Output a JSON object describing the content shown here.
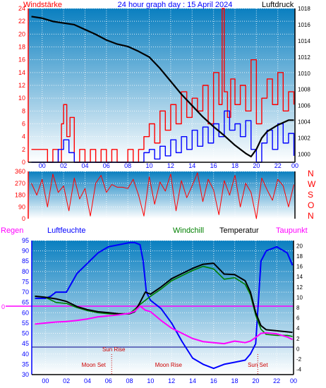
{
  "header": {
    "left_label": "Windstärke",
    "title": "24 hour graph day : 15 April 2024",
    "right_label": "Luftdruck"
  },
  "colors": {
    "wind_gust": "#ff0000",
    "wind_avg": "#0000ff",
    "pressure": "#000000",
    "direction": "#ff0000",
    "humidity": "#0000ff",
    "temperature": "#000000",
    "windchill": "#008000",
    "dewpoint": "#ff00ff",
    "rain": "#ff00ff",
    "sky_top": "#0a7fc0",
    "sky_bottom": "#ffffff"
  },
  "chart_data": [
    {
      "type": "line",
      "name": "wind-and-pressure",
      "x_ticks": [
        "00",
        "02",
        "04",
        "06",
        "08",
        "10",
        "12",
        "14",
        "16",
        "18",
        "20",
        "22",
        "00"
      ],
      "left_axis": {
        "label": "Windstärke",
        "range": [
          0,
          24
        ],
        "ticks": [
          0,
          2,
          4,
          6,
          8,
          10,
          12,
          14,
          16,
          18,
          20,
          22,
          24
        ]
      },
      "right_axis": {
        "label": "Luftdruck",
        "range": [
          999,
          1018
        ],
        "ticks": [
          1000,
          1002,
          1004,
          1006,
          1008,
          1010,
          1012,
          1014,
          1016,
          1018
        ]
      },
      "series": [
        {
          "name": "pressure",
          "axis": "right",
          "x": [
            -1,
            0,
            1,
            2,
            3,
            4,
            5,
            6,
            7,
            8,
            9,
            10,
            11,
            12,
            13,
            14,
            15,
            16,
            17,
            18,
            19,
            19.5,
            20,
            20.5,
            21,
            22,
            23,
            23.5
          ],
          "values": [
            1017,
            1016.8,
            1016.4,
            1016.2,
            1016,
            1015.4,
            1014.8,
            1014.1,
            1013.6,
            1013.3,
            1012.7,
            1012,
            1010.6,
            1009,
            1007.4,
            1006,
            1004.6,
            1003.4,
            1002.3,
            1001.1,
            1000.1,
            999.7,
            1000.6,
            1002,
            1002.8,
            1003.6,
            1004.2,
            1004.2
          ]
        },
        {
          "name": "wind gust",
          "axis": "left",
          "x": [
            -1,
            0,
            0.5,
            1,
            1.5,
            1.8,
            2,
            2.3,
            2.6,
            3,
            3.5,
            4,
            4.5,
            5,
            5.5,
            6,
            6.5,
            7,
            7.5,
            8,
            8.5,
            9,
            9.5,
            10,
            10.5,
            11,
            11.5,
            12,
            12.5,
            13,
            13.5,
            14,
            14.5,
            15,
            15.5,
            16,
            16.5,
            16.8,
            17,
            17.3,
            17.6,
            18,
            18.5,
            19,
            19.5,
            20,
            20.5,
            21,
            21.5,
            22,
            22.5,
            23,
            23.5
          ],
          "values": [
            2,
            2,
            0,
            2,
            0,
            6,
            9,
            4,
            7,
            0,
            2,
            0,
            2,
            0,
            2,
            0,
            2,
            0,
            0,
            2,
            0,
            2,
            4,
            6,
            3,
            8,
            5,
            9,
            6,
            11,
            7,
            10,
            8,
            12,
            6,
            14,
            9,
            24,
            11,
            7,
            13,
            9,
            12,
            8,
            16,
            6,
            10,
            13,
            9,
            14,
            8,
            11,
            9
          ]
        },
        {
          "name": "wind average",
          "axis": "left",
          "x": [
            -1,
            0,
            1,
            1.5,
            2,
            2.5,
            3,
            4,
            6,
            8,
            9,
            9.5,
            10,
            10.5,
            11,
            11.5,
            12,
            12.5,
            13,
            13.5,
            14,
            14.5,
            15,
            15.5,
            16,
            16.5,
            17,
            17.5,
            18,
            18.5,
            19,
            19.5,
            20,
            20.5,
            21,
            21.5,
            22,
            22.5,
            23,
            23.5
          ],
          "values": [
            0,
            0,
            0,
            2,
            3.5,
            1.5,
            0,
            0,
            0,
            0,
            0,
            1.5,
            2,
            0.5,
            2.5,
            1,
            3.5,
            1.5,
            4,
            2,
            5,
            2.5,
            5.5,
            3,
            6,
            4,
            8,
            5,
            6,
            4,
            6.5,
            2,
            0,
            3,
            5,
            2,
            6,
            3,
            4.5,
            1
          ]
        }
      ]
    },
    {
      "type": "line",
      "name": "wind-direction",
      "left_axis": {
        "range": [
          0,
          360
        ],
        "ticks": [
          0,
          90,
          180,
          270,
          360
        ]
      },
      "right_labels": [
        "N",
        "W",
        "S",
        "O",
        "N"
      ],
      "series": [
        {
          "name": "direction",
          "x": [
            -1,
            -0.5,
            0,
            0.5,
            1,
            1.5,
            2,
            2.5,
            3,
            3.5,
            4,
            4.5,
            5,
            5.5,
            6,
            6.5,
            7,
            7.5,
            8,
            8.5,
            9,
            9.5,
            10,
            10.5,
            11,
            11.5,
            12,
            12.5,
            13,
            13.5,
            14,
            14.5,
            15,
            15.5,
            16,
            16.5,
            17,
            17.5,
            18,
            18.5,
            19,
            19.5,
            20,
            20.5,
            21,
            21.5,
            22,
            22.5,
            23,
            23.5
          ],
          "values": [
            270,
            180,
            300,
            90,
            340,
            200,
            250,
            60,
            310,
            150,
            230,
            20,
            270,
            330,
            200,
            260,
            240,
            240,
            230,
            300,
            180,
            20,
            320,
            110,
            280,
            210,
            340,
            60,
            290,
            160,
            250,
            350,
            130,
            300,
            220,
            30,
            290,
            180,
            330,
            90,
            270,
            200,
            0,
            310,
            220,
            140,
            300,
            250,
            90,
            260
          ]
        }
      ]
    },
    {
      "type": "line",
      "name": "temperature-and-humidity",
      "header_labels": {
        "rain": "Regen",
        "humidity": "Luftfeuchte",
        "windchill": "Windchill",
        "temperature": "Temperatur",
        "dewpoint": "Taupunkt"
      },
      "rain_axis_label": "0",
      "left_axis": {
        "range": [
          30,
          95
        ],
        "ticks": [
          30,
          35,
          40,
          45,
          50,
          55,
          60,
          65,
          70,
          75,
          80,
          85,
          90,
          95
        ]
      },
      "right_axis": {
        "range": [
          -5,
          21
        ],
        "ticks": [
          -4,
          -2,
          0,
          2,
          4,
          6,
          8,
          10,
          12,
          14,
          16,
          18,
          20
        ]
      },
      "annotations": [
        {
          "text": "Sun Rise",
          "x": 6.5
        },
        {
          "text": "Sun Set",
          "x": 20.2
        },
        {
          "text": "Moon Set",
          "x": 6.2
        },
        {
          "text": "Moon Rise",
          "x": 10.5
        }
      ],
      "series": [
        {
          "name": "Luftfeuchte",
          "axis": "left",
          "x": [
            -1,
            0,
            0.5,
            1,
            2,
            3,
            4,
            5,
            6,
            7,
            8,
            8.5,
            9,
            9.3,
            9.6,
            10,
            11,
            12,
            13,
            14,
            15,
            16,
            17,
            18,
            19,
            19.5,
            20,
            20.5,
            21,
            22,
            23,
            23.5
          ],
          "values": [
            67,
            67,
            68,
            70,
            70,
            79,
            84,
            89,
            92,
            93,
            94,
            94,
            93,
            85,
            70,
            66,
            62,
            55,
            46,
            38,
            35,
            33,
            35,
            36,
            37,
            40,
            45,
            85,
            90,
            92,
            89,
            83
          ]
        },
        {
          "name": "Temperatur",
          "axis": "right",
          "x": [
            -1,
            0,
            1,
            2,
            3,
            4,
            5,
            6,
            7,
            8,
            8.5,
            9,
            9.5,
            10,
            11,
            12,
            13,
            14,
            15,
            16,
            17,
            18,
            19,
            19.5,
            20,
            20.5,
            21,
            22,
            23,
            23.5
          ],
          "values": [
            10.2,
            10,
            9.7,
            9.2,
            8.2,
            7.6,
            7.2,
            7,
            6.8,
            6.8,
            7.2,
            9,
            11,
            10.6,
            12,
            13.6,
            14.6,
            15.6,
            16.4,
            16.6,
            14.5,
            14.4,
            13.2,
            11,
            7,
            4.5,
            3.7,
            3.5,
            3.3,
            3.2
          ]
        },
        {
          "name": "Windchill",
          "axis": "right",
          "x": [
            -1,
            0,
            1,
            2,
            3,
            4,
            5,
            6,
            7,
            8,
            9,
            10,
            11,
            12,
            13,
            14,
            15,
            16,
            17,
            18,
            19,
            19.5,
            20,
            20.5,
            21,
            22,
            23,
            23.5
          ],
          "values": [
            10.2,
            10,
            9,
            8.8,
            8,
            7.4,
            7,
            6.8,
            6.7,
            6.8,
            8.6,
            10.2,
            11.6,
            13.2,
            14.2,
            15.2,
            16,
            15.5,
            13.5,
            13.8,
            12.5,
            10.5,
            6.5,
            3.8,
            2.8,
            2.6,
            2.6,
            2.4
          ]
        },
        {
          "name": "Taupunkt",
          "axis": "right",
          "x": [
            -1,
            0,
            1,
            2,
            3,
            4,
            5,
            6,
            7,
            8,
            8.5,
            9,
            9.5,
            10,
            11,
            12,
            13,
            14,
            15,
            16,
            17,
            18,
            19,
            19.5,
            20,
            20.5,
            21,
            22,
            23,
            23.5
          ],
          "values": [
            4.8,
            5,
            5.2,
            5.3,
            5.5,
            5.8,
            6.2,
            6.4,
            6.6,
            6.9,
            7.3,
            8.3,
            7.5,
            7.2,
            5.5,
            4,
            3,
            2,
            1.4,
            1.2,
            1.0,
            1.5,
            1.2,
            1.5,
            2.2,
            3.0,
            3.1,
            2.9,
            2.3,
            1.8
          ]
        }
      ]
    }
  ]
}
